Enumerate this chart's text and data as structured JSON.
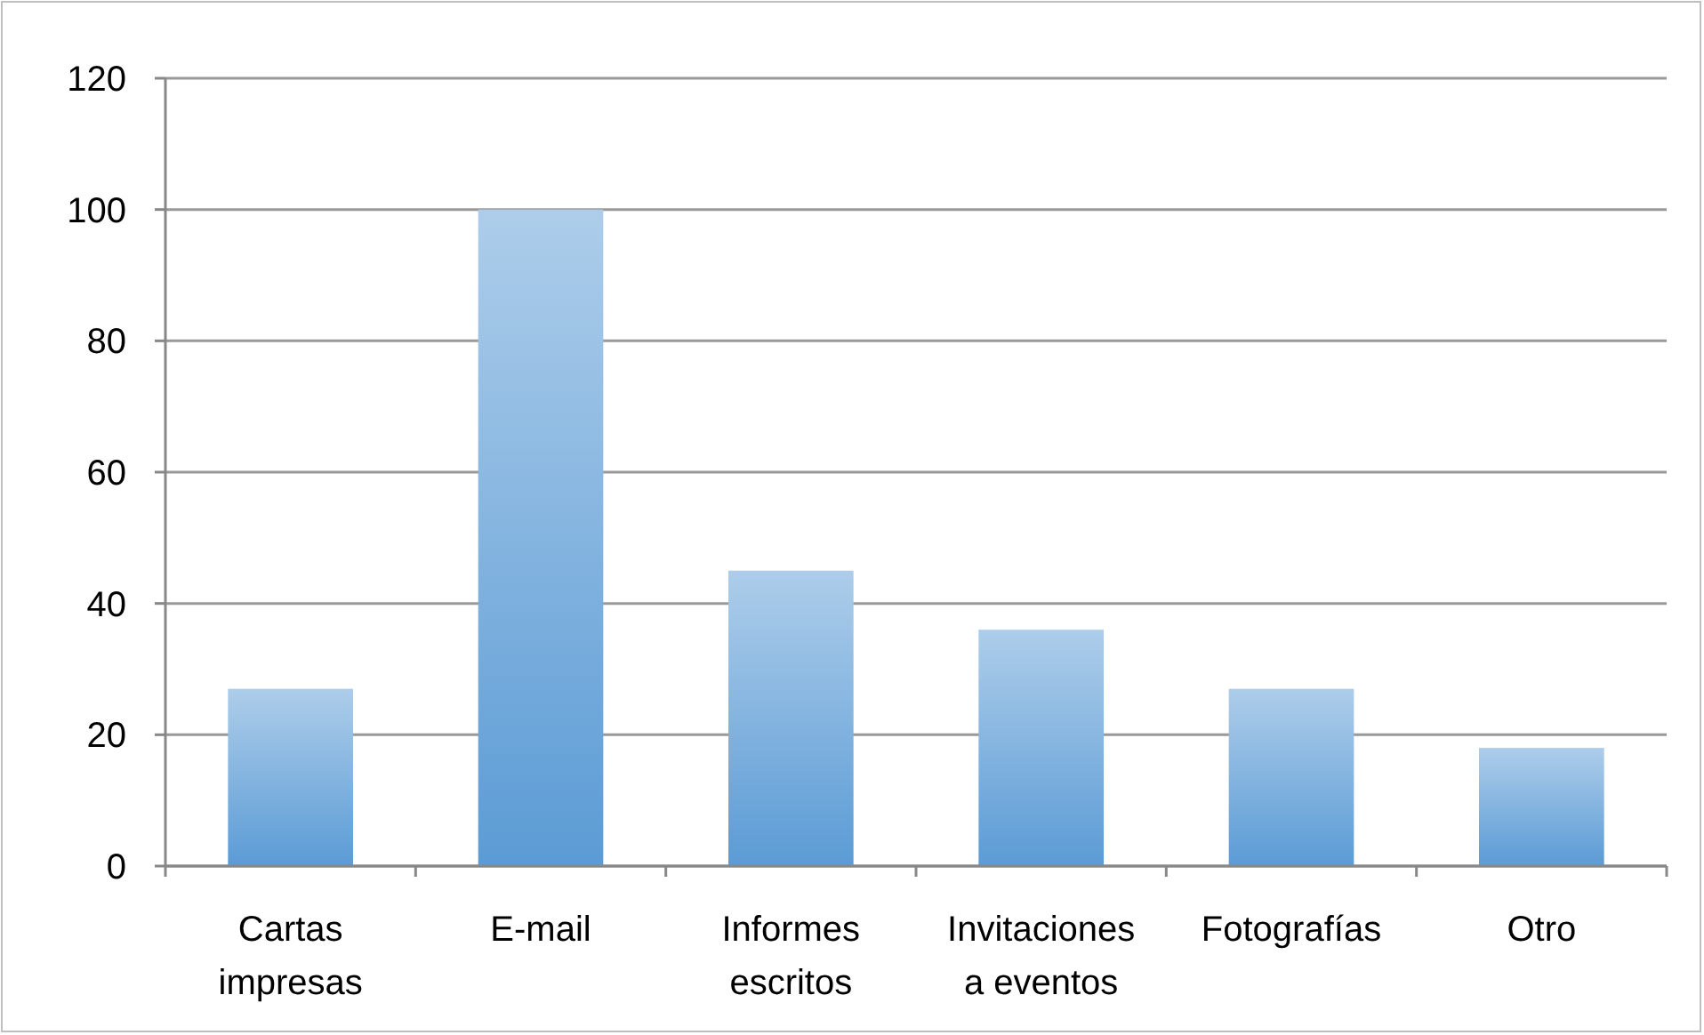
{
  "chart_data": {
    "type": "bar",
    "categories": [
      "Cartas impresas",
      "E-mail",
      "Informes escritos",
      "Invitaciones a eventos",
      "Fotografías",
      "Otro"
    ],
    "values": [
      27,
      100,
      45,
      36,
      27,
      18
    ],
    "color": "#5b9bd5",
    "ylim": [
      0,
      120
    ],
    "yticks": [
      0,
      20,
      40,
      60,
      80,
      100,
      120
    ],
    "grid": "y"
  }
}
